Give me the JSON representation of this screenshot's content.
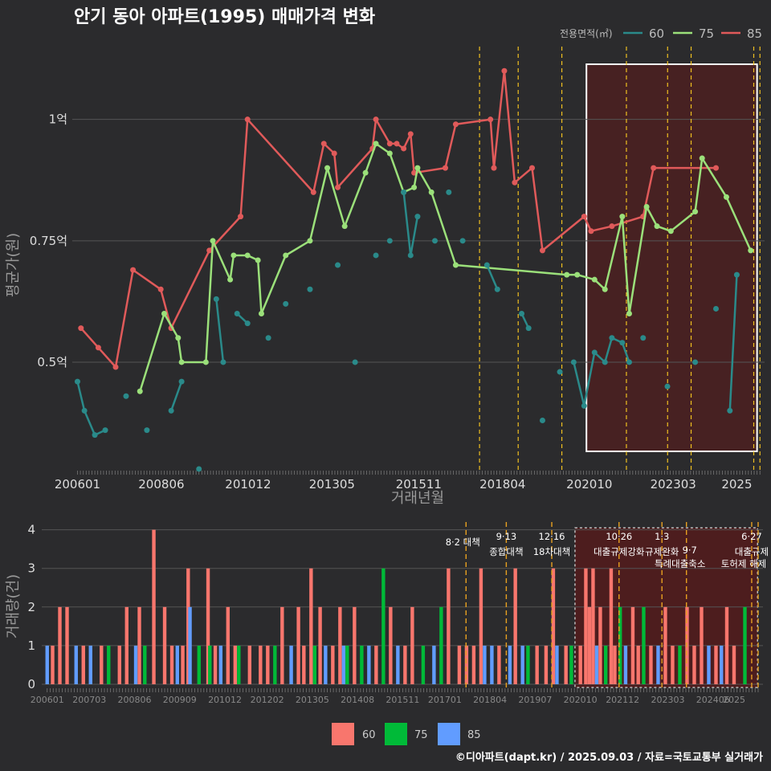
{
  "title": "안기 동아 아파트(1995) 매매가격 변화",
  "source": "©디아파트(dapt.kr) / 2025.09.03 / 자료=국토교통부 실거래가",
  "colors": {
    "60": "#2a8a8a",
    "75": "#9be07a",
    "85": "#e05a5a",
    "bar60": "#f8766d",
    "bar75": "#00ba38",
    "bar85": "#619cff",
    "highlight": "#5a1a1a",
    "event": "#f0c020"
  },
  "chart_data": [
    {
      "type": "line",
      "title": "안기 동아 아파트(1995) 매매가격 변화",
      "xlabel": "거래년월",
      "ylabel": "평균가(원)",
      "legend_title": "전용면적(㎡)",
      "legend": [
        "60",
        "75",
        "85"
      ],
      "legend_position": "top-right",
      "x_ticks": [
        "200601",
        "200806",
        "201012",
        "201305",
        "201511",
        "201804",
        "202010",
        "202303",
        "2025"
      ],
      "y_ticks": [
        "0.5억",
        "0.75억",
        "1억"
      ],
      "ylim": [
        0.27,
        1.15
      ],
      "highlight_range": [
        "2020.09",
        "2025.08"
      ],
      "series": [
        {
          "name": "85",
          "points": [
            [
              2006.1,
              0.57
            ],
            [
              2006.6,
              0.53
            ],
            [
              2007.1,
              0.49
            ],
            [
              2007.6,
              0.69
            ],
            [
              2008.4,
              0.65
            ],
            [
              2008.7,
              0.57
            ],
            [
              2009.8,
              0.73
            ],
            [
              2010.7,
              0.8
            ],
            [
              2010.9,
              1.0
            ],
            [
              2012.8,
              0.85
            ],
            [
              2013.1,
              0.95
            ],
            [
              2013.4,
              0.93
            ],
            [
              2013.5,
              0.86
            ],
            [
              2014.5,
              0.94
            ],
            [
              2014.6,
              1.0
            ],
            [
              2015.0,
              0.95
            ],
            [
              2015.2,
              0.95
            ],
            [
              2015.4,
              0.94
            ],
            [
              2015.6,
              0.97
            ],
            [
              2015.7,
              0.89
            ],
            [
              2016.6,
              0.9
            ],
            [
              2016.9,
              0.99
            ],
            [
              2017.9,
              1.0
            ],
            [
              2018.0,
              0.9
            ],
            [
              2018.3,
              1.1
            ],
            [
              2018.6,
              0.87
            ],
            [
              2019.1,
              0.9
            ],
            [
              2019.4,
              0.73
            ],
            [
              2020.6,
              0.8
            ],
            [
              2020.8,
              0.77
            ],
            [
              2021.4,
              0.78
            ],
            [
              2022.3,
              0.8
            ],
            [
              2022.6,
              0.9
            ],
            [
              2024.4,
              0.9
            ]
          ]
        },
        {
          "name": "75",
          "points": [
            [
              2007.8,
              0.44
            ],
            [
              2008.5,
              0.6
            ],
            [
              2008.9,
              0.55
            ],
            [
              2009.0,
              0.5
            ],
            [
              2009.7,
              0.5
            ],
            [
              2009.9,
              0.75
            ],
            [
              2010.4,
              0.67
            ],
            [
              2010.5,
              0.72
            ],
            [
              2010.9,
              0.72
            ],
            [
              2011.2,
              0.71
            ],
            [
              2011.3,
              0.6
            ],
            [
              2012.0,
              0.72
            ],
            [
              2012.7,
              0.75
            ],
            [
              2013.2,
              0.9
            ],
            [
              2013.7,
              0.78
            ],
            [
              2014.3,
              0.89
            ],
            [
              2014.6,
              0.95
            ],
            [
              2015.0,
              0.93
            ],
            [
              2015.4,
              0.85
            ],
            [
              2015.7,
              0.86
            ],
            [
              2015.8,
              0.9
            ],
            [
              2016.2,
              0.85
            ],
            [
              2016.9,
              0.7
            ],
            [
              2020.1,
              0.68
            ],
            [
              2020.4,
              0.68
            ],
            [
              2020.9,
              0.67
            ],
            [
              2021.2,
              0.65
            ],
            [
              2021.7,
              0.8
            ],
            [
              2021.9,
              0.6
            ],
            [
              2022.4,
              0.82
            ],
            [
              2022.7,
              0.78
            ],
            [
              2023.1,
              0.77
            ],
            [
              2023.8,
              0.81
            ],
            [
              2024.0,
              0.92
            ],
            [
              2024.7,
              0.84
            ],
            [
              2025.4,
              0.73
            ]
          ]
        },
        {
          "name": "60",
          "points": [
            [
              2006.0,
              0.46
            ],
            [
              2006.2,
              0.4
            ],
            [
              2006.5,
              0.35
            ],
            [
              2006.8,
              0.36
            ],
            [
              2007.4,
              0.43
            ],
            [
              2008.0,
              0.36
            ],
            [
              2008.7,
              0.4
            ],
            [
              2009.0,
              0.46
            ],
            [
              2009.5,
              0.28
            ],
            [
              2010.0,
              0.63
            ],
            [
              2010.2,
              0.5
            ],
            [
              2010.6,
              0.6
            ],
            [
              2010.9,
              0.58
            ],
            [
              2011.5,
              0.55
            ],
            [
              2012.0,
              0.62
            ],
            [
              2012.7,
              0.65
            ],
            [
              2013.5,
              0.7
            ],
            [
              2014.0,
              0.5
            ],
            [
              2014.6,
              0.72
            ],
            [
              2015.0,
              0.75
            ],
            [
              2015.4,
              0.85
            ],
            [
              2015.6,
              0.72
            ],
            [
              2015.8,
              0.8
            ],
            [
              2016.3,
              0.75
            ],
            [
              2016.7,
              0.85
            ],
            [
              2017.1,
              0.75
            ],
            [
              2017.8,
              0.7
            ],
            [
              2018.1,
              0.65
            ],
            [
              2018.8,
              0.6
            ],
            [
              2019.0,
              0.57
            ],
            [
              2019.4,
              0.38
            ],
            [
              2019.9,
              0.48
            ],
            [
              2020.3,
              0.5
            ],
            [
              2020.6,
              0.41
            ],
            [
              2020.9,
              0.52
            ],
            [
              2021.2,
              0.5
            ],
            [
              2021.4,
              0.55
            ],
            [
              2021.7,
              0.54
            ],
            [
              2021.9,
              0.5
            ],
            [
              2022.3,
              0.55
            ],
            [
              2023.0,
              0.45
            ],
            [
              2023.8,
              0.5
            ],
            [
              2024.4,
              0.61
            ],
            [
              2024.8,
              0.4
            ],
            [
              2025.0,
              0.68
            ]
          ]
        }
      ]
    },
    {
      "type": "bar",
      "ylabel": "거래량(건)",
      "y_ticks": [
        "0",
        "1",
        "2",
        "3",
        "4"
      ],
      "ylim": [
        0,
        4.2
      ],
      "x_ticks": [
        "200601",
        "200703",
        "200806",
        "200909",
        "201012",
        "201202",
        "201305",
        "201408",
        "201511",
        "201701",
        "201804",
        "201907",
        "202010",
        "202112",
        "202303",
        "202406",
        "2025"
      ],
      "legend": [
        "60",
        "75",
        "85"
      ],
      "legend_position": "bottom",
      "events": [
        {
          "date": "2017.08.02",
          "label": "8·2 대책"
        },
        {
          "date": "2018.09.13",
          "label": "9·13",
          "label2": "종합대책"
        },
        {
          "date": "2019.12.16",
          "label": "12·16",
          "label2": "18차대책"
        },
        {
          "date": "2021.10.26",
          "label": "10·26",
          "label2": "대출규제강화"
        },
        {
          "date": "2023.01.03",
          "label": "1·3",
          "label2": "규제완화"
        },
        {
          "date": "2023.09.07",
          "label": "9·7",
          "label2": "특례대출축소"
        },
        {
          "date": "2025.06.27",
          "label": "6·27",
          "label2": "대출규제"
        },
        {
          "date": "2025.09.01",
          "label": "토허제 해제"
        }
      ],
      "bars": [
        [
          2006.0,
          1,
          "85"
        ],
        [
          2006.15,
          1,
          "60"
        ],
        [
          2006.35,
          2,
          "60"
        ],
        [
          2006.55,
          2,
          "60"
        ],
        [
          2006.8,
          1,
          "85"
        ],
        [
          2007.0,
          1,
          "60"
        ],
        [
          2007.2,
          1,
          "85"
        ],
        [
          2007.5,
          1,
          "60"
        ],
        [
          2007.7,
          1,
          "75"
        ],
        [
          2008.0,
          1,
          "60"
        ],
        [
          2008.2,
          2,
          "60"
        ],
        [
          2008.45,
          1,
          "85"
        ],
        [
          2008.55,
          2,
          "60"
        ],
        [
          2008.7,
          1,
          "75"
        ],
        [
          2008.95,
          4,
          "60"
        ],
        [
          2009.25,
          2,
          "60"
        ],
        [
          2009.45,
          1,
          "60"
        ],
        [
          2009.6,
          1,
          "85"
        ],
        [
          2009.75,
          1,
          "60"
        ],
        [
          2009.9,
          3,
          "60"
        ],
        [
          2009.95,
          2,
          "85"
        ],
        [
          2010.2,
          1,
          "75"
        ],
        [
          2010.45,
          3,
          "60"
        ],
        [
          2010.5,
          1,
          "75"
        ],
        [
          2010.65,
          1,
          "60"
        ],
        [
          2010.8,
          1,
          "85"
        ],
        [
          2011.0,
          2,
          "60"
        ],
        [
          2011.2,
          1,
          "60"
        ],
        [
          2011.3,
          1,
          "75"
        ],
        [
          2011.6,
          1,
          "60"
        ],
        [
          2011.9,
          1,
          "60"
        ],
        [
          2012.1,
          1,
          "60"
        ],
        [
          2012.3,
          1,
          "75"
        ],
        [
          2012.5,
          2,
          "60"
        ],
        [
          2012.75,
          1,
          "85"
        ],
        [
          2012.95,
          2,
          "60"
        ],
        [
          2013.1,
          1,
          "60"
        ],
        [
          2013.3,
          3,
          "60"
        ],
        [
          2013.4,
          1,
          "75"
        ],
        [
          2013.55,
          2,
          "60"
        ],
        [
          2013.7,
          1,
          "85"
        ],
        [
          2013.9,
          1,
          "60"
        ],
        [
          2014.1,
          2,
          "60"
        ],
        [
          2014.2,
          1,
          "85"
        ],
        [
          2014.3,
          1,
          "75"
        ],
        [
          2014.5,
          2,
          "60"
        ],
        [
          2014.7,
          1,
          "75"
        ],
        [
          2014.9,
          1,
          "85"
        ],
        [
          2015.1,
          1,
          "60"
        ],
        [
          2015.3,
          3,
          "75"
        ],
        [
          2015.5,
          2,
          "60"
        ],
        [
          2015.7,
          1,
          "85"
        ],
        [
          2015.9,
          1,
          "60"
        ],
        [
          2016.1,
          2,
          "60"
        ],
        [
          2016.4,
          1,
          "75"
        ],
        [
          2016.7,
          1,
          "85"
        ],
        [
          2016.9,
          2,
          "75"
        ],
        [
          2017.1,
          3,
          "60"
        ],
        [
          2017.4,
          1,
          "60"
        ],
        [
          2017.6,
          1,
          "60"
        ],
        [
          2017.8,
          1,
          "60"
        ],
        [
          2018.0,
          3,
          "60"
        ],
        [
          2018.1,
          1,
          "85"
        ],
        [
          2018.3,
          1,
          "85"
        ],
        [
          2018.5,
          1,
          "60"
        ],
        [
          2018.8,
          1,
          "85"
        ],
        [
          2018.95,
          3,
          "60"
        ],
        [
          2019.15,
          1,
          "85"
        ],
        [
          2019.3,
          1,
          "75"
        ],
        [
          2019.55,
          1,
          "60"
        ],
        [
          2019.8,
          1,
          "60"
        ],
        [
          2020.0,
          3,
          "60"
        ],
        [
          2020.1,
          1,
          "85"
        ],
        [
          2020.35,
          1,
          "60"
        ],
        [
          2020.5,
          1,
          "75"
        ],
        [
          2020.75,
          1,
          "60"
        ],
        [
          2020.9,
          3,
          "60"
        ],
        [
          2021.0,
          2,
          "60"
        ],
        [
          2021.1,
          3,
          "60"
        ],
        [
          2021.2,
          1,
          "85"
        ],
        [
          2021.3,
          2,
          "60"
        ],
        [
          2021.45,
          1,
          "75"
        ],
        [
          2021.6,
          3,
          "60"
        ],
        [
          2021.7,
          1,
          "60"
        ],
        [
          2021.85,
          2,
          "75"
        ],
        [
          2022.0,
          1,
          "85"
        ],
        [
          2022.2,
          2,
          "60"
        ],
        [
          2022.35,
          1,
          "60"
        ],
        [
          2022.5,
          2,
          "75"
        ],
        [
          2022.7,
          1,
          "60"
        ],
        [
          2022.9,
          1,
          "85"
        ],
        [
          2023.1,
          2,
          "60"
        ],
        [
          2023.3,
          1,
          "60"
        ],
        [
          2023.5,
          1,
          "75"
        ],
        [
          2023.7,
          2,
          "60"
        ],
        [
          2023.9,
          1,
          "60"
        ],
        [
          2024.1,
          2,
          "60"
        ],
        [
          2024.3,
          1,
          "85"
        ],
        [
          2024.5,
          1,
          "60"
        ],
        [
          2024.65,
          1,
          "85"
        ],
        [
          2024.8,
          2,
          "60"
        ],
        [
          2025.0,
          1,
          "60"
        ],
        [
          2025.3,
          2,
          "75"
        ]
      ]
    }
  ]
}
